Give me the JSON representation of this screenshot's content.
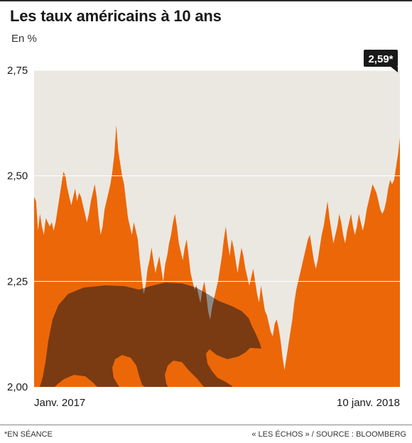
{
  "title": "Les taux américains à 10 ans",
  "subtitle": "En %",
  "footnote": "*EN SÉANCE",
  "source": "« LES ÉCHOS » / SOURCE : BLOOMBERG",
  "colors": {
    "area": "#ec6708",
    "background": "#ebe8e2",
    "bear": "#7a3b12",
    "bear_over_bg": "#8a8a8a",
    "badge": "#1a1a1a"
  },
  "chart_data": {
    "type": "area",
    "title": "Les taux américains à 10 ans",
    "ylabel": "En %",
    "ylim": [
      2.0,
      2.75
    ],
    "yticks": [
      2.0,
      2.25,
      2.5,
      2.75
    ],
    "ytick_labels": [
      "2,00",
      "2,25",
      "2,50",
      "2,75"
    ],
    "xtick_labels": [
      "Janv. 2017",
      "10 janv. 2018"
    ],
    "last_value_label": "2,59*",
    "series": [
      {
        "values": [
          2.45,
          2.44,
          2.37,
          2.41,
          2.38,
          2.36,
          2.4,
          2.39,
          2.38,
          2.39,
          2.37,
          2.39,
          2.42,
          2.45,
          2.48,
          2.51,
          2.5,
          2.47,
          2.45,
          2.43,
          2.45,
          2.47,
          2.44,
          2.46,
          2.45,
          2.43,
          2.41,
          2.39,
          2.41,
          2.44,
          2.46,
          2.48,
          2.45,
          2.4,
          2.36,
          2.38,
          2.42,
          2.44,
          2.46,
          2.48,
          2.51,
          2.55,
          2.62,
          2.56,
          2.53,
          2.5,
          2.48,
          2.44,
          2.4,
          2.38,
          2.36,
          2.39,
          2.37,
          2.35,
          2.3,
          2.26,
          2.22,
          2.24,
          2.28,
          2.3,
          2.33,
          2.3,
          2.27,
          2.29,
          2.31,
          2.28,
          2.25,
          2.29,
          2.31,
          2.34,
          2.36,
          2.39,
          2.41,
          2.38,
          2.34,
          2.32,
          2.3,
          2.33,
          2.35,
          2.31,
          2.27,
          2.25,
          2.23,
          2.24,
          2.22,
          2.2,
          2.23,
          2.25,
          2.22,
          2.18,
          2.16,
          2.19,
          2.21,
          2.23,
          2.25,
          2.28,
          2.31,
          2.35,
          2.38,
          2.34,
          2.31,
          2.35,
          2.33,
          2.3,
          2.27,
          2.3,
          2.33,
          2.31,
          2.28,
          2.26,
          2.24,
          2.26,
          2.28,
          2.25,
          2.22,
          2.2,
          2.24,
          2.21,
          2.18,
          2.17,
          2.15,
          2.13,
          2.12,
          2.15,
          2.16,
          2.14,
          2.11,
          2.07,
          2.04,
          2.07,
          2.1,
          2.13,
          2.16,
          2.2,
          2.23,
          2.25,
          2.27,
          2.29,
          2.31,
          2.33,
          2.35,
          2.36,
          2.33,
          2.3,
          2.28,
          2.3,
          2.33,
          2.36,
          2.38,
          2.41,
          2.44,
          2.4,
          2.37,
          2.34,
          2.36,
          2.38,
          2.41,
          2.39,
          2.36,
          2.34,
          2.37,
          2.39,
          2.41,
          2.38,
          2.36,
          2.38,
          2.41,
          2.39,
          2.37,
          2.39,
          2.42,
          2.44,
          2.46,
          2.48,
          2.47,
          2.46,
          2.44,
          2.42,
          2.41,
          2.42,
          2.44,
          2.47,
          2.49,
          2.48,
          2.49,
          2.52,
          2.55,
          2.59
        ]
      }
    ],
    "grid": true
  }
}
